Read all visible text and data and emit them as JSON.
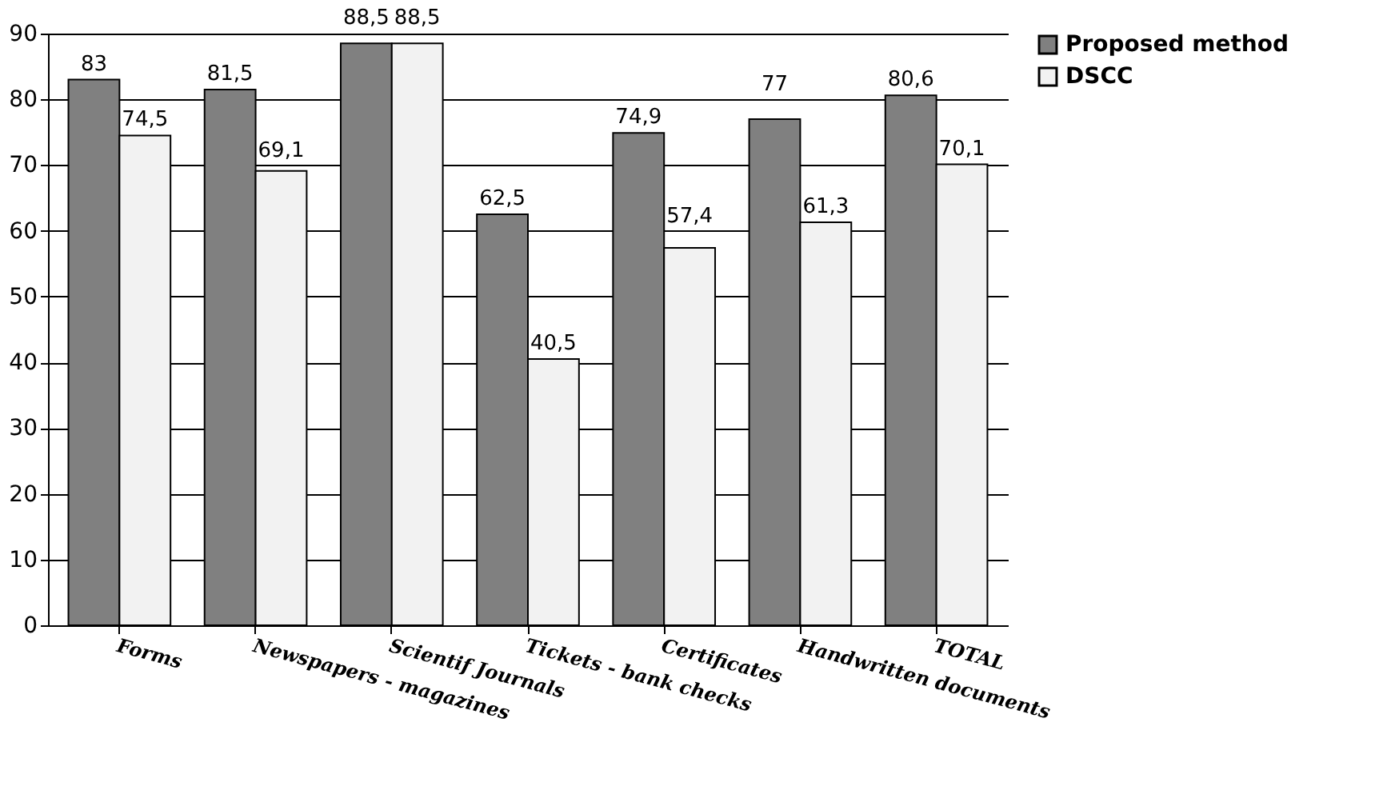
{
  "chart_data": {
    "type": "bar",
    "categories": [
      "Forms",
      "Newspapers - magazines",
      "Scientif Journals",
      "Tickets - bank checks",
      "Certificates",
      "Handwritten documents",
      "TOTAL"
    ],
    "series": [
      {
        "name": "Proposed method",
        "color": "#808080",
        "values": [
          83,
          81.5,
          88.5,
          62.5,
          74.9,
          77,
          80.6
        ],
        "value_labels": [
          "83",
          "81,5",
          "88,5",
          "62,5",
          "74,9",
          "77",
          "80,6"
        ]
      },
      {
        "name": "DSCC",
        "color": "#f2f2f2",
        "values": [
          74.5,
          69.1,
          88.5,
          40.5,
          57.4,
          61.3,
          70.1
        ],
        "value_labels": [
          "74,5",
          "69,1",
          "88,5",
          "40,5",
          "57,4",
          "61,3",
          "70,1"
        ]
      }
    ],
    "ylim": [
      0,
      90
    ],
    "yticks": [
      0,
      10,
      20,
      30,
      40,
      50,
      60,
      70,
      80,
      90
    ],
    "grid": "y",
    "legend": "right"
  }
}
